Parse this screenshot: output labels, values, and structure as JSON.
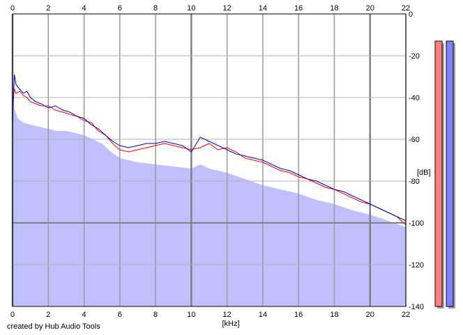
{
  "footer": {
    "credit": "created by Hub Audio Tools"
  },
  "chart_data": {
    "type": "line",
    "title": "",
    "xlabel": "[kHz]",
    "ylabel": "[dB]",
    "xlim": [
      0,
      22
    ],
    "ylim": [
      -140,
      0
    ],
    "x_ticks": [
      0,
      2,
      4,
      6,
      8,
      10,
      12,
      14,
      16,
      18,
      20,
      22
    ],
    "y_ticks": [
      0,
      -20,
      -40,
      -60,
      -80,
      -100,
      -120,
      -140
    ],
    "x_tick_labels": [
      "0",
      "2",
      "4",
      "6",
      "8",
      "10",
      "12",
      "14",
      "16",
      "18",
      "20",
      "22"
    ],
    "y_tick_labels": [
      "0",
      "-20",
      "-40",
      "-60",
      "-80",
      "-100",
      "-120",
      "-140"
    ],
    "grid": true,
    "x_tick_labels_top_and_bottom": true,
    "y_tick_labels_side": "right",
    "fill_series": {
      "color": "#c0c0ff",
      "x": [
        0,
        0.1,
        0.3,
        0.6,
        1.0,
        1.5,
        2.0,
        2.5,
        3.0,
        3.5,
        4.0,
        4.5,
        5.0,
        5.5,
        6.0,
        7.0,
        8.0,
        9.0,
        10.0,
        10.5,
        11.0,
        12.0,
        13.0,
        14.0,
        15.0,
        16.0,
        17.0,
        18.0,
        19.0,
        20.0,
        21.0,
        22.0
      ],
      "y": [
        -52,
        -45,
        -50,
        -52,
        -53,
        -54,
        -55,
        -56,
        -56,
        -57,
        -58,
        -60,
        -62,
        -66,
        -69,
        -71,
        -72,
        -73,
        -74,
        -72,
        -74,
        -76,
        -79,
        -82,
        -84,
        -86,
        -89,
        -91,
        -94,
        -96,
        -99,
        -102
      ]
    },
    "series": [
      {
        "color": "#ff0000",
        "x": [
          0,
          0.1,
          0.2,
          0.4,
          0.6,
          0.8,
          1.0,
          1.3,
          1.6,
          2.0,
          2.4,
          2.8,
          3.2,
          3.6,
          4.0,
          4.4,
          4.8,
          5.2,
          5.6,
          6.0,
          6.5,
          7.0,
          7.5,
          8.0,
          8.5,
          9.0,
          9.5,
          10.0,
          10.5,
          11.0,
          11.5,
          12.0,
          12.5,
          13.0,
          13.5,
          14.0,
          14.5,
          15.0,
          15.5,
          16.0,
          16.5,
          17.0,
          17.5,
          18.0,
          18.5,
          19.0,
          19.5,
          20.0,
          20.5,
          21.0,
          21.5,
          22.0
        ],
        "y": [
          -43,
          -36,
          -38,
          -37,
          -39,
          -40,
          -42,
          -43,
          -44,
          -44,
          -46,
          -47,
          -48,
          -49,
          -51,
          -52,
          -56,
          -58,
          -62,
          -65,
          -66,
          -65,
          -64,
          -63,
          -62,
          -63,
          -64,
          -65,
          -64,
          -62,
          -65,
          -64,
          -66,
          -69,
          -70,
          -71,
          -73,
          -75,
          -76,
          -78,
          -79,
          -81,
          -83,
          -84,
          -86,
          -88,
          -90,
          -91,
          -93,
          -95,
          -97,
          -101
        ]
      },
      {
        "color": "#0000c0",
        "x": [
          0,
          0.1,
          0.2,
          0.4,
          0.6,
          0.8,
          1.0,
          1.3,
          1.6,
          2.0,
          2.4,
          2.8,
          3.2,
          3.6,
          4.0,
          4.4,
          4.8,
          5.2,
          5.6,
          6.0,
          6.5,
          7.0,
          7.5,
          8.0,
          8.5,
          9.0,
          9.5,
          10.0,
          10.5,
          11.0,
          11.5,
          12.0,
          12.5,
          13.0,
          13.5,
          14.0,
          14.5,
          15.0,
          15.5,
          16.0,
          16.5,
          17.0,
          17.5,
          18.0,
          18.5,
          19.0,
          19.5,
          20.0,
          20.5,
          21.0,
          21.5,
          22.0
        ],
        "y": [
          -53,
          -29,
          -34,
          -36,
          -38,
          -37,
          -40,
          -42,
          -43,
          -45,
          -44,
          -46,
          -47,
          -49,
          -50,
          -53,
          -55,
          -58,
          -61,
          -63,
          -64,
          -63,
          -62,
          -62,
          -61,
          -62,
          -63,
          -66,
          -59,
          -61,
          -63,
          -65,
          -67,
          -68,
          -69,
          -70,
          -72,
          -74,
          -75,
          -77,
          -79,
          -80,
          -82,
          -84,
          -85,
          -87,
          -89,
          -91,
          -93,
          -95,
          -97,
          -99
        ]
      }
    ],
    "level_meters": [
      {
        "color": "#ff8080",
        "value": -13
      },
      {
        "color": "#8080ff",
        "value": -13
      }
    ]
  }
}
